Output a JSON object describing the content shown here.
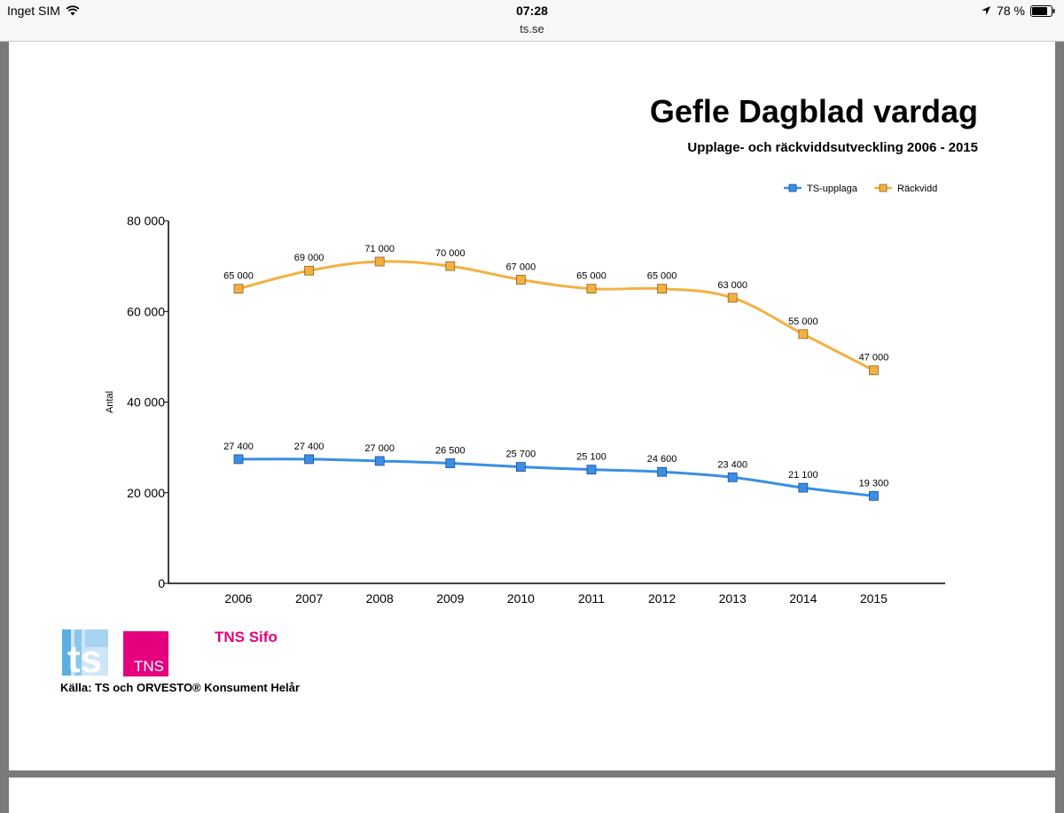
{
  "statusbar": {
    "carrier": "Inget SIM",
    "time": "07:28",
    "battery": "78 %"
  },
  "browser": {
    "url": "ts.se"
  },
  "chart_data": {
    "type": "line",
    "title": "Gefle Dagblad vardag",
    "subtitle": "Upplage- och räckviddsutveckling 2006 - 2015",
    "xlabel": "",
    "ylabel": "Antal",
    "ylim": [
      0,
      80000
    ],
    "yticks": [
      0,
      20000,
      40000,
      60000,
      80000
    ],
    "ytick_labels": [
      "0",
      "20 000",
      "40 000",
      "60 000",
      "80 000"
    ],
    "categories": [
      "2006",
      "2007",
      "2008",
      "2009",
      "2010",
      "2011",
      "2012",
      "2013",
      "2014",
      "2015"
    ],
    "legend_position": "top-right",
    "series": [
      {
        "name": "TS-upplaga",
        "color": "#3a8ee6",
        "values": [
          27400,
          27400,
          27000,
          26500,
          25700,
          25100,
          24600,
          23400,
          21100,
          19300
        ],
        "labels": [
          "27 400",
          "27 400",
          "27 000",
          "26 500",
          "25 700",
          "25 100",
          "24 600",
          "23 400",
          "21 100",
          "19 300"
        ]
      },
      {
        "name": "Räckvidd",
        "color": "#f3b040",
        "values": [
          65000,
          69000,
          71000,
          70000,
          67000,
          65000,
          65000,
          63000,
          55000,
          47000
        ],
        "labels": [
          "65 000",
          "69 000",
          "71 000",
          "70 000",
          "67 000",
          "65 000",
          "65 000",
          "63 000",
          "55 000",
          "47 000"
        ]
      }
    ]
  },
  "logos": {
    "ts": "ts",
    "tns": "TNS",
    "tns_sifo": "TNS Sifo"
  },
  "source": "Källa: TS och ORVESTO® Konsument Helår"
}
